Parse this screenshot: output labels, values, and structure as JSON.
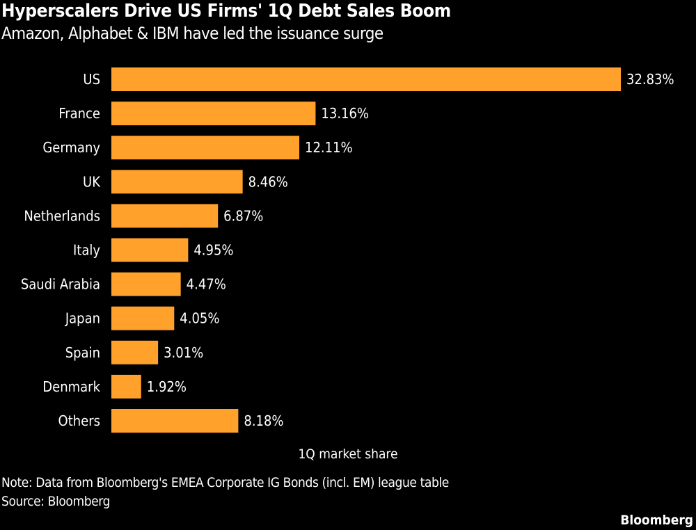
{
  "chart_data": {
    "type": "bar",
    "orientation": "horizontal",
    "title": "Hyperscalers Drive US Firms' 1Q Debt Sales Boom",
    "subtitle": "Amazon, Alphabet & IBM have led the issuance surge",
    "categories": [
      "US",
      "France",
      "Germany",
      "UK",
      "Netherlands",
      "Italy",
      "Saudi Arabia",
      "Japan",
      "Spain",
      "Denmark",
      "Others"
    ],
    "values": [
      32.83,
      13.16,
      12.11,
      8.46,
      6.87,
      4.95,
      4.47,
      4.05,
      3.01,
      1.92,
      8.18
    ],
    "value_labels": [
      "32.83%",
      "13.16%",
      "12.11%",
      "8.46%",
      "6.87%",
      "4.95%",
      "4.47%",
      "4.05%",
      "3.01%",
      "1.92%",
      "8.18%"
    ],
    "xlabel": "1Q market share",
    "xlim": [
      0,
      32.83
    ],
    "grid": false,
    "bar_color": "#FFA12B",
    "background": "#000000"
  },
  "footer": {
    "note": "Note: Data from Bloomberg's EMEA Corporate IG Bonds (incl. EM) league table",
    "source": "Source: Bloomberg",
    "logo": "Bloomberg"
  }
}
